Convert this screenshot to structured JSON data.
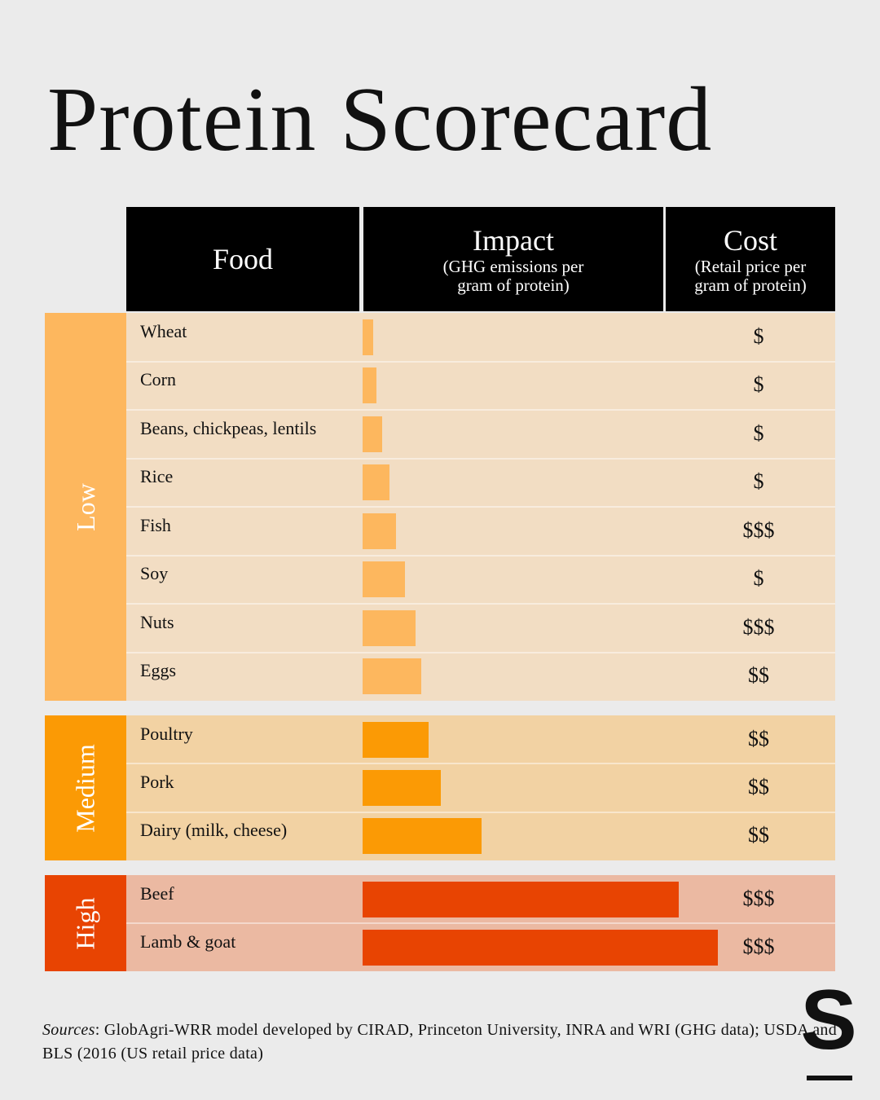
{
  "title": "Protein Scorecard",
  "headers": {
    "food": "Food",
    "impact": "Impact",
    "impact_sub": "(GHG emissions per\ngram of protein)",
    "cost": "Cost",
    "cost_sub": "(Retail price per\ngram of protein)"
  },
  "colors": {
    "low": "#fdb75e",
    "medium": "#fb9a05",
    "high": "#e84402",
    "low_bg": "#f2ddc3",
    "medium_bg": "#f2d2a3",
    "high_bg": "#ebb9a2"
  },
  "chart_data": {
    "type": "bar",
    "groups": [
      {
        "label": "Low",
        "items": [
          {
            "food": "Wheat",
            "impact": 3,
            "cost": "$"
          },
          {
            "food": "Corn",
            "impact": 4,
            "cost": "$"
          },
          {
            "food": "Beans, chickpeas, lentils",
            "impact": 5.5,
            "cost": "$"
          },
          {
            "food": "Rice",
            "impact": 7.5,
            "cost": "$"
          },
          {
            "food": "Fish",
            "impact": 9.5,
            "cost": "$$$"
          },
          {
            "food": "Soy",
            "impact": 12,
            "cost": "$"
          },
          {
            "food": "Nuts",
            "impact": 15,
            "cost": "$$$"
          },
          {
            "food": "Eggs",
            "impact": 16.5,
            "cost": "$$"
          }
        ]
      },
      {
        "label": "Medium",
        "items": [
          {
            "food": "Poultry",
            "impact": 18.5,
            "cost": "$$"
          },
          {
            "food": "Pork",
            "impact": 22,
            "cost": "$$"
          },
          {
            "food": "Dairy (milk, cheese)",
            "impact": 33.5,
            "cost": "$$"
          }
        ]
      },
      {
        "label": "High",
        "items": [
          {
            "food": "Beef",
            "impact": 89,
            "cost": "$$$"
          },
          {
            "food": "Lamb & goat",
            "impact": 100,
            "cost": "$$$"
          }
        ]
      }
    ]
  },
  "sources": {
    "label": "Sources",
    "text": ": GlobAgri-WRR model developed by CIRAD, Princeton University, INRA and WRI (GHG data); USDA and BLS (2016 (US retail price data)"
  },
  "logo": {
    "letter": "S"
  }
}
